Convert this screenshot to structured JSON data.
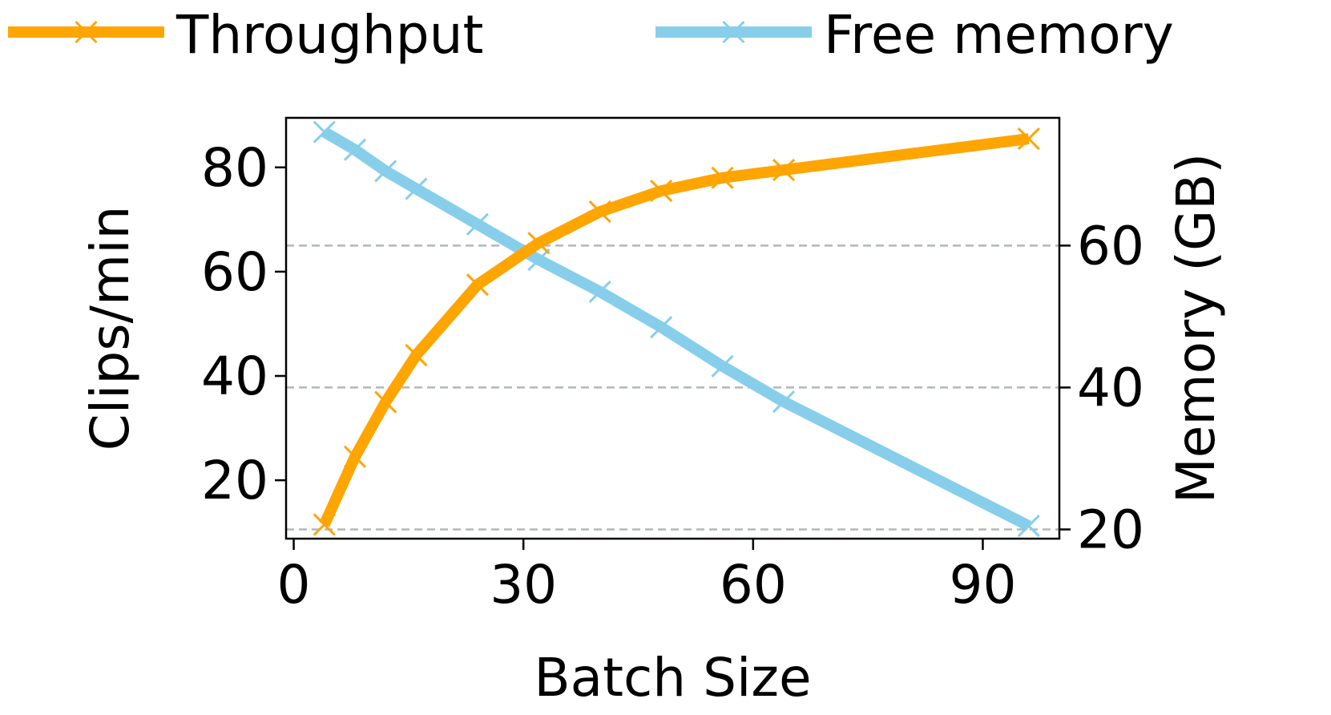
{
  "chart_data": {
    "type": "line",
    "title": "",
    "xlabel": "Batch Size",
    "ylabel": "Clips/min",
    "y2label": "Memory (GB)",
    "xlim": [
      -1,
      100
    ],
    "ylim": [
      8.8,
      89.5
    ],
    "y2lim": [
      18.7,
      78
    ],
    "xticks": [
      0,
      30,
      60,
      90
    ],
    "yticks": [
      20,
      40,
      60,
      80
    ],
    "y2ticks": [
      20,
      40,
      60
    ],
    "grid": "dashed horizontal lines at right-axis ticks",
    "legend_placement": "top, outside plot",
    "series": [
      {
        "name": "Throughput",
        "axis": "left",
        "color": "#FFA500",
        "marker": "x",
        "x": [
          4,
          8,
          12,
          16,
          24,
          32,
          40,
          48,
          56,
          64,
          96
        ],
        "y": [
          11.5,
          24.5,
          35,
          44,
          57.5,
          65.5,
          71.5,
          75.5,
          78,
          79.5,
          85.5
        ]
      },
      {
        "name": "Free memory",
        "axis": "right",
        "color": "#87CEEB",
        "marker": "x",
        "x": [
          4,
          8,
          12,
          16,
          24,
          32,
          40,
          48,
          56,
          64,
          96
        ],
        "y": [
          76,
          73.5,
          70.5,
          68,
          63,
          58,
          53.5,
          48.5,
          43,
          38,
          20.5
        ]
      }
    ]
  }
}
